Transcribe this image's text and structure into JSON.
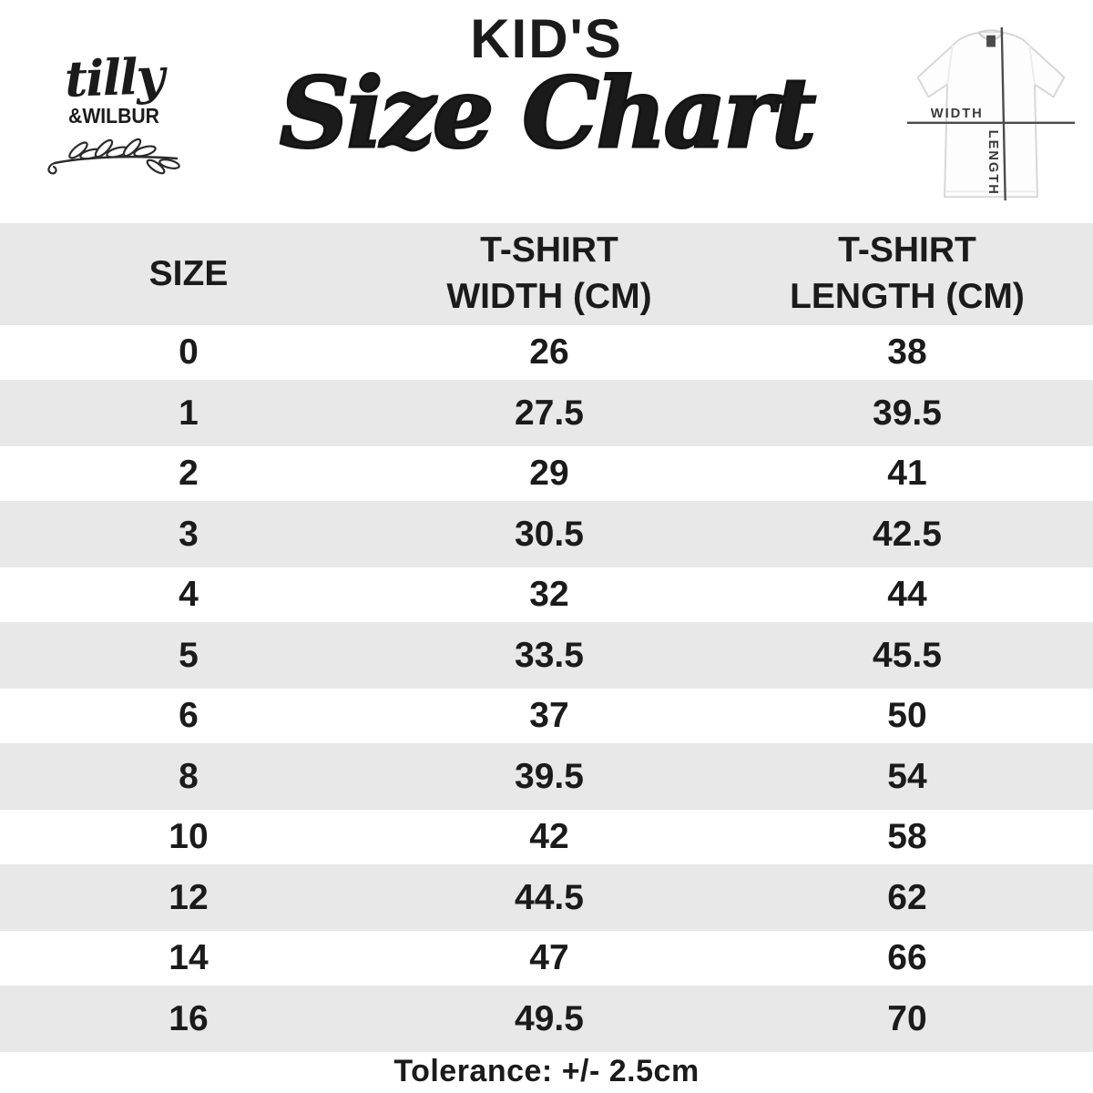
{
  "logo": {
    "script": "tilly",
    "caps": "&WILBUR"
  },
  "header": {
    "kicker": "KID'S",
    "title": "Size Chart"
  },
  "diagram": {
    "width_label": "WIDTH",
    "length_label": "LENGTH"
  },
  "table": {
    "columns": [
      {
        "line1": "SIZE",
        "line2": ""
      },
      {
        "line1": "T-SHIRT",
        "line2": "WIDTH (CM)"
      },
      {
        "line1": "T-SHIRT",
        "line2": "LENGTH (CM)"
      }
    ],
    "rows": [
      {
        "size": "0",
        "width": "26",
        "length": "38"
      },
      {
        "size": "1",
        "width": "27.5",
        "length": "39.5"
      },
      {
        "size": "2",
        "width": "29",
        "length": "41"
      },
      {
        "size": "3",
        "width": "30.5",
        "length": "42.5"
      },
      {
        "size": "4",
        "width": "32",
        "length": "44"
      },
      {
        "size": "5",
        "width": "33.5",
        "length": "45.5"
      },
      {
        "size": "6",
        "width": "37",
        "length": "50"
      },
      {
        "size": "8",
        "width": "39.5",
        "length": "54"
      },
      {
        "size": "10",
        "width": "42",
        "length": "58"
      },
      {
        "size": "12",
        "width": "44.5",
        "length": "62"
      },
      {
        "size": "14",
        "width": "47",
        "length": "66"
      },
      {
        "size": "16",
        "width": "49.5",
        "length": "70"
      }
    ]
  },
  "footer": {
    "tolerance": "Tolerance: +/- 2.5cm"
  },
  "colors": {
    "stripe": "#e8e8e8",
    "ink": "#1b1b1b",
    "diagram_line": "#4a4a4a"
  },
  "chart_data": {
    "type": "table",
    "title": "KID'S Size Chart",
    "categories": [
      "0",
      "1",
      "2",
      "3",
      "4",
      "5",
      "6",
      "8",
      "10",
      "12",
      "14",
      "16"
    ],
    "series": [
      {
        "name": "T-SHIRT WIDTH (CM)",
        "values": [
          26,
          27.5,
          29,
          30.5,
          32,
          33.5,
          37,
          39.5,
          42,
          44.5,
          47,
          49.5
        ]
      },
      {
        "name": "T-SHIRT LENGTH (CM)",
        "values": [
          38,
          39.5,
          41,
          42.5,
          44,
          45.5,
          50,
          54,
          58,
          62,
          66,
          70
        ]
      }
    ],
    "annotation": "Tolerance: +/- 2.5cm"
  }
}
